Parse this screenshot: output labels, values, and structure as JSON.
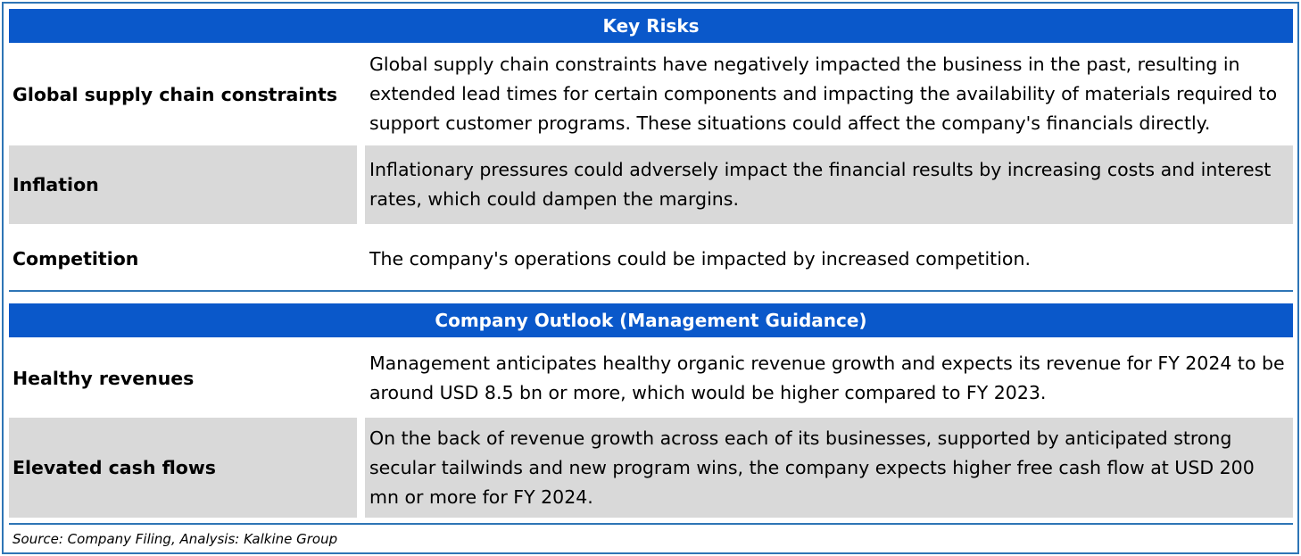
{
  "key_risks": {
    "title": "Key Risks",
    "rows": [
      {
        "label": "Global supply chain constraints",
        "description": "Global supply chain constraints have negatively impacted the business in the past, resulting in extended lead times for certain components and impacting the availability of materials required to support customer programs. These situations could affect the company's financials directly."
      },
      {
        "label": "Inflation",
        "description": "Inflationary pressures could adversely impact the financial results by increasing costs and interest rates, which could dampen the margins."
      },
      {
        "label": "Competition",
        "description": "The company's operations could be impacted by increased competition."
      }
    ]
  },
  "outlook": {
    "title": "Company Outlook (Management Guidance)",
    "rows": [
      {
        "label": "Healthy revenues",
        "description": "Management anticipates healthy organic revenue growth and expects its revenue for FY 2024 to be around USD 8.5 bn or more, which would be higher compared to FY 2023."
      },
      {
        "label": "Elevated cash flows",
        "description": "On the back of revenue growth across each of its businesses, supported by anticipated strong secular tailwinds and new program wins, the company expects higher free cash flow at USD 200 mn or more for FY 2024."
      }
    ]
  },
  "source": "Source: Company Filing, Analysis: Kalkine Group",
  "colors": {
    "header_bg": "#0A58CA",
    "header_text": "#FFFFFF",
    "row_shade": "#D9D9D9",
    "border": "#2E75B6"
  }
}
